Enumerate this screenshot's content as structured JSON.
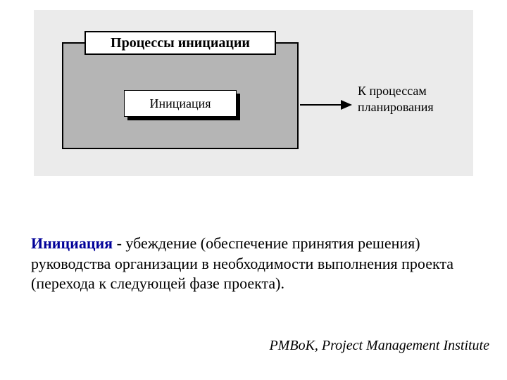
{
  "diagram": {
    "outer_panel_bg": "#ebebeb",
    "gray_box_bg": "#b5b5b5",
    "gray_box_border": "#000000",
    "title": "Процессы инициации",
    "title_fontsize": 20,
    "inner_box_label": "Инициация",
    "inner_box_fontsize": 18,
    "arrow_color": "#000000",
    "arrow_label_line1": "К процессам",
    "arrow_label_line2": "планирования",
    "arrow_label_fontsize": 18
  },
  "definition": {
    "term": "Инициация",
    "term_color": "#000099",
    "separator": " - ",
    "body": "убеждение (обеспечение принятия решения) руководства организации в необходимости выполнения проекта (перехода к следующей фазе проекта).",
    "fontsize": 22
  },
  "attribution": {
    "text": "PMBoK, Project Management Institute",
    "fontsize": 20
  }
}
